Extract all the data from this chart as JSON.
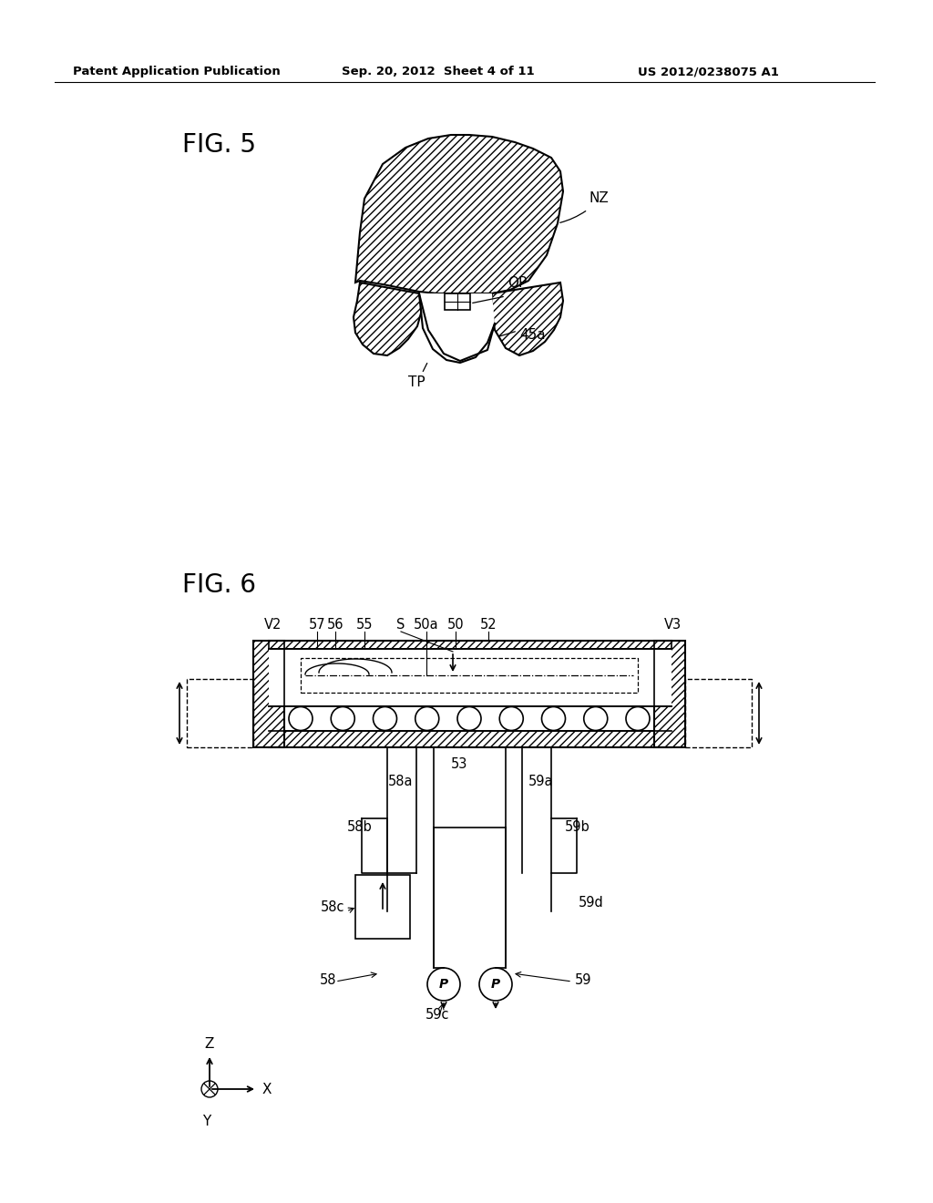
{
  "bg_color": "#ffffff",
  "fig_width": 10.24,
  "fig_height": 13.2,
  "header_left": "Patent Application Publication",
  "header_mid": "Sep. 20, 2012  Sheet 4 of 11",
  "header_right": "US 2012/0238075 A1",
  "fig5_label": "FIG. 5",
  "fig6_label": "FIG. 6",
  "line_color": "#000000",
  "text_color": "#000000",
  "hatch_pattern": "////"
}
